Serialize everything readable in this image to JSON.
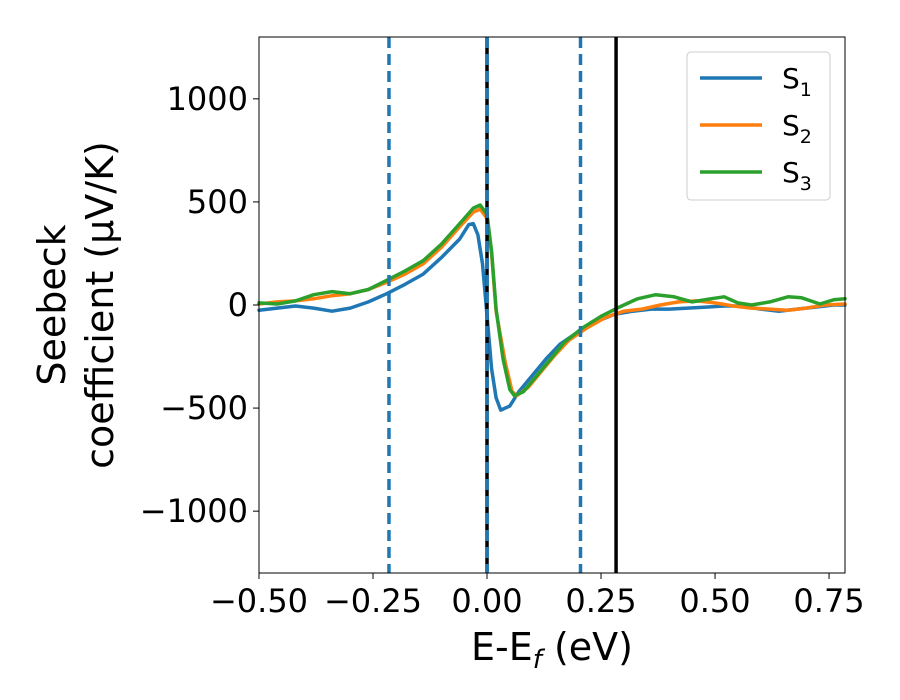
{
  "chart_data": {
    "type": "line",
    "title": "",
    "xlabel": "E-E",
    "xlabel_sub": "f",
    "xlabel_unit": " (eV)",
    "ylabel_line1": "Seebeck",
    "ylabel_line2": "coefficient  (μV/K)",
    "xlim": [
      -0.5,
      0.785
    ],
    "ylim": [
      -1300,
      1300
    ],
    "xticks": [
      -0.5,
      -0.25,
      0.0,
      0.25,
      0.5,
      0.75
    ],
    "xtick_labels": [
      "−0.50",
      "−0.25",
      "0.00",
      "0.25",
      "0.50",
      "0.75"
    ],
    "yticks": [
      -1000,
      -500,
      0,
      500,
      1000
    ],
    "ytick_labels": [
      "−1000",
      "−500",
      "0",
      "500",
      "1000"
    ],
    "grid": false,
    "legend_position": "top-right",
    "vlines": [
      {
        "x": -0.215,
        "style": "dashed",
        "color": "#1f77b4"
      },
      {
        "x": 0.0,
        "style": "solid",
        "color": "#000000"
      },
      {
        "x": 0.0,
        "style": "dashed",
        "color": "#1f77b4"
      },
      {
        "x": 0.205,
        "style": "dashed",
        "color": "#1f77b4"
      },
      {
        "x": 0.283,
        "style": "solid",
        "color": "#000000"
      }
    ],
    "series": [
      {
        "name": "S",
        "sub": "1",
        "color": "#1f77b4",
        "points": [
          [
            -0.5,
            -25
          ],
          [
            -0.46,
            -15
          ],
          [
            -0.42,
            -5
          ],
          [
            -0.38,
            -15
          ],
          [
            -0.34,
            -30
          ],
          [
            -0.3,
            -15
          ],
          [
            -0.26,
            15
          ],
          [
            -0.22,
            55
          ],
          [
            -0.18,
            100
          ],
          [
            -0.14,
            150
          ],
          [
            -0.1,
            230
          ],
          [
            -0.06,
            320
          ],
          [
            -0.04,
            390
          ],
          [
            -0.03,
            395
          ],
          [
            -0.02,
            340
          ],
          [
            -0.01,
            200
          ],
          [
            0.0,
            -50
          ],
          [
            0.01,
            -310
          ],
          [
            0.02,
            -450
          ],
          [
            0.03,
            -510
          ],
          [
            0.05,
            -490
          ],
          [
            0.07,
            -420
          ],
          [
            0.1,
            -340
          ],
          [
            0.13,
            -260
          ],
          [
            0.16,
            -190
          ],
          [
            0.2,
            -130
          ],
          [
            0.24,
            -80
          ],
          [
            0.28,
            -45
          ],
          [
            0.32,
            -30
          ],
          [
            0.36,
            -20
          ],
          [
            0.4,
            -20
          ],
          [
            0.44,
            -15
          ],
          [
            0.48,
            -10
          ],
          [
            0.52,
            -5
          ],
          [
            0.56,
            -5
          ],
          [
            0.6,
            -20
          ],
          [
            0.64,
            -30
          ],
          [
            0.68,
            -20
          ],
          [
            0.72,
            -10
          ],
          [
            0.76,
            0
          ],
          [
            0.785,
            0
          ]
        ]
      },
      {
        "name": "S",
        "sub": "2",
        "color": "#ff7f0e",
        "points": [
          [
            -0.5,
            5
          ],
          [
            -0.46,
            15
          ],
          [
            -0.42,
            20
          ],
          [
            -0.38,
            30
          ],
          [
            -0.34,
            45
          ],
          [
            -0.3,
            55
          ],
          [
            -0.26,
            75
          ],
          [
            -0.22,
            110
          ],
          [
            -0.18,
            150
          ],
          [
            -0.14,
            200
          ],
          [
            -0.1,
            280
          ],
          [
            -0.06,
            380
          ],
          [
            -0.03,
            450
          ],
          [
            -0.015,
            465
          ],
          [
            0.0,
            420
          ],
          [
            0.01,
            250
          ],
          [
            0.02,
            -30
          ],
          [
            0.04,
            -280
          ],
          [
            0.055,
            -420
          ],
          [
            0.065,
            -440
          ],
          [
            0.09,
            -400
          ],
          [
            0.12,
            -320
          ],
          [
            0.15,
            -240
          ],
          [
            0.18,
            -170
          ],
          [
            0.22,
            -110
          ],
          [
            0.26,
            -60
          ],
          [
            0.3,
            -30
          ],
          [
            0.34,
            -20
          ],
          [
            0.38,
            0
          ],
          [
            0.42,
            15
          ],
          [
            0.46,
            20
          ],
          [
            0.5,
            10
          ],
          [
            0.54,
            -5
          ],
          [
            0.58,
            -15
          ],
          [
            0.62,
            -20
          ],
          [
            0.66,
            -25
          ],
          [
            0.7,
            -15
          ],
          [
            0.74,
            0
          ],
          [
            0.785,
            5
          ]
        ]
      },
      {
        "name": "S",
        "sub": "3",
        "color": "#2ca02c",
        "points": [
          [
            -0.5,
            10
          ],
          [
            -0.46,
            5
          ],
          [
            -0.42,
            20
          ],
          [
            -0.38,
            50
          ],
          [
            -0.34,
            65
          ],
          [
            -0.3,
            55
          ],
          [
            -0.26,
            75
          ],
          [
            -0.22,
            120
          ],
          [
            -0.18,
            165
          ],
          [
            -0.14,
            215
          ],
          [
            -0.1,
            295
          ],
          [
            -0.06,
            395
          ],
          [
            -0.03,
            470
          ],
          [
            -0.015,
            485
          ],
          [
            0.0,
            440
          ],
          [
            0.01,
            260
          ],
          [
            0.02,
            -20
          ],
          [
            0.035,
            -260
          ],
          [
            0.05,
            -410
          ],
          [
            0.06,
            -440
          ],
          [
            0.08,
            -420
          ],
          [
            0.11,
            -340
          ],
          [
            0.14,
            -260
          ],
          [
            0.17,
            -180
          ],
          [
            0.21,
            -110
          ],
          [
            0.25,
            -55
          ],
          [
            0.29,
            -10
          ],
          [
            0.33,
            30
          ],
          [
            0.37,
            50
          ],
          [
            0.41,
            40
          ],
          [
            0.45,
            15
          ],
          [
            0.49,
            30
          ],
          [
            0.52,
            40
          ],
          [
            0.55,
            10
          ],
          [
            0.58,
            0
          ],
          [
            0.62,
            15
          ],
          [
            0.66,
            40
          ],
          [
            0.69,
            35
          ],
          [
            0.73,
            5
          ],
          [
            0.76,
            25
          ],
          [
            0.785,
            30
          ]
        ]
      }
    ]
  }
}
